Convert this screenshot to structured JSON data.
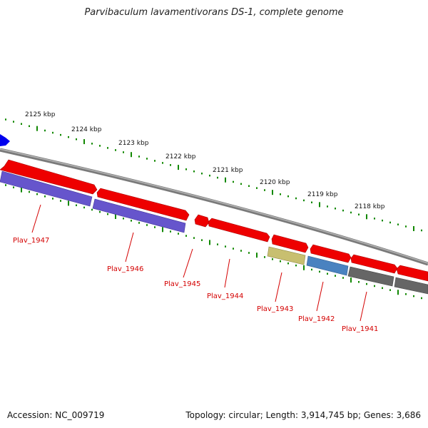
{
  "title": "Parvibaculum lavamentivorans DS-1, complete genome",
  "accession": "Accession: NC_009719",
  "summary": "Topology: circular; Length: 3,914,745 bp; Genes: 3,686",
  "colors": {
    "forward_gene": "#ee0000",
    "reverse_gene_1": "#6655cc",
    "reverse_gene_2": "#c8bf70",
    "reverse_gene_3": "#4a82c0",
    "reverse_gene_4": "#666666",
    "tick": "#118800",
    "backbone": "#888888",
    "label": "#d40000",
    "blue_marker": "#0000ee"
  },
  "kbp_labels": [
    "2125 kbp",
    "2124 kbp",
    "2123 kbp",
    "2122 kbp",
    "2121 kbp",
    "2120 kbp",
    "2119 kbp",
    "2118 kbp"
  ],
  "gene_labels": [
    "Plav_1947",
    "Plav_1946",
    "Plav_1945",
    "Plav_1944",
    "Plav_1943",
    "Plav_1942",
    "Plav_1941"
  ]
}
